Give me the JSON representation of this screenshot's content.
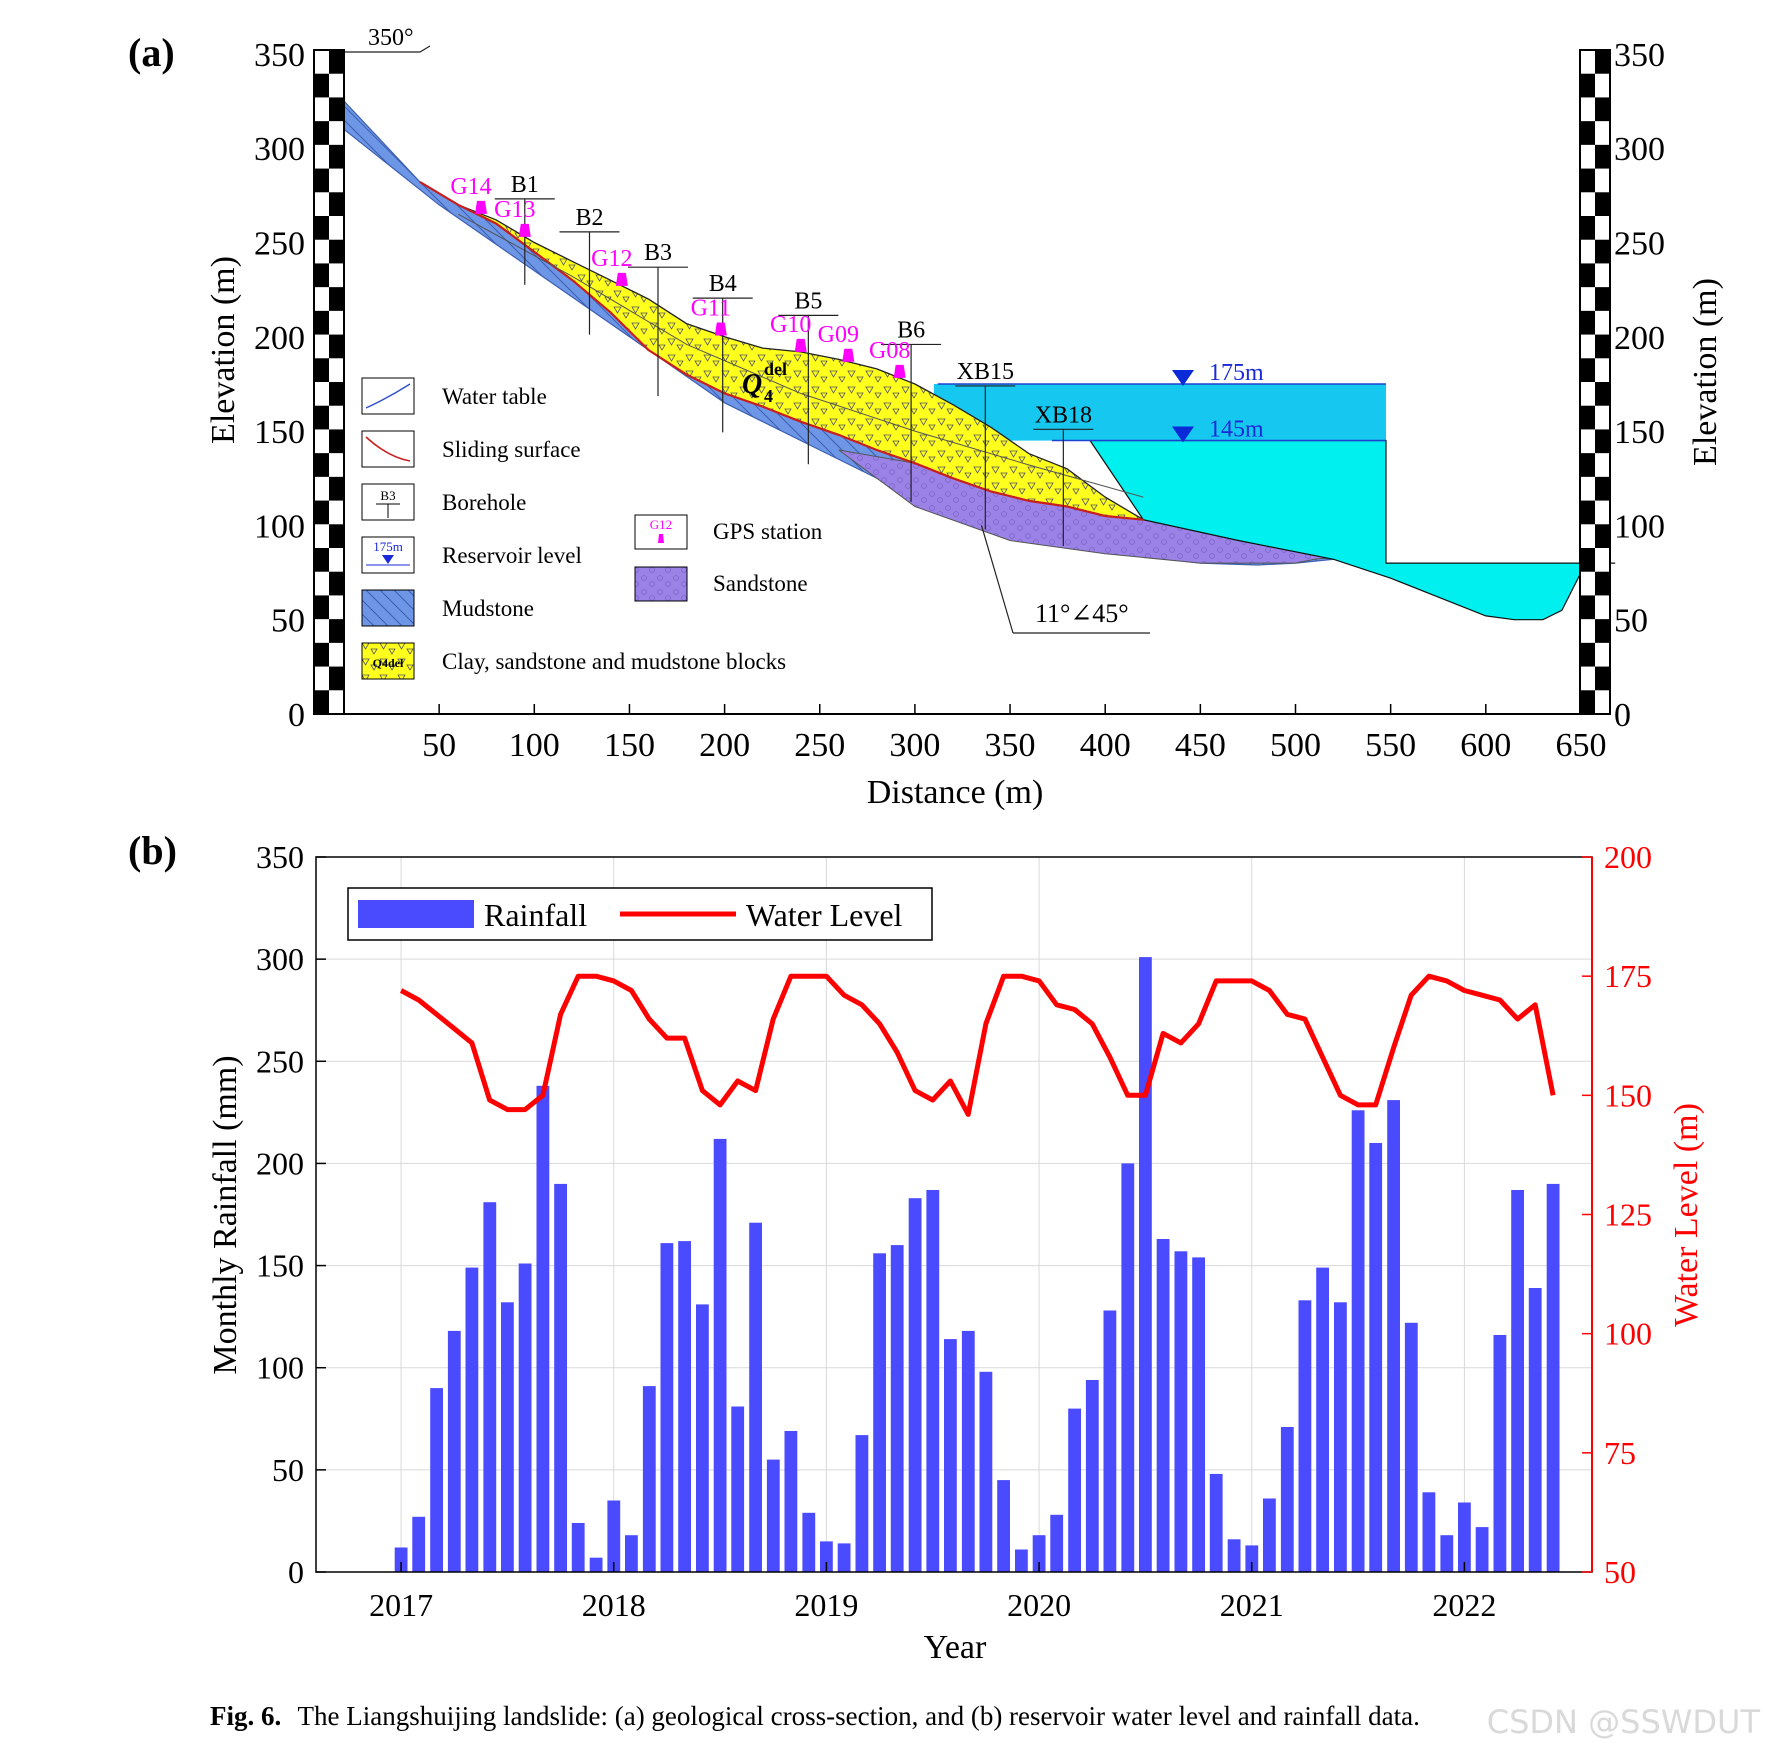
{
  "watermark": "CSDN @SSWDUT",
  "caption": {
    "label": "Fig. 6.",
    "text": "The Liangshuijing landslide: (a) geological cross-section, and (b) reservoir water level and rainfall data."
  },
  "panel_a": {
    "letter": "(a)",
    "xlabel": "Distance (m)",
    "ylabel_left": "Elevation (m)",
    "ylabel_right": "Elevation (m)",
    "xticks": [
      50,
      100,
      150,
      200,
      250,
      300,
      350,
      400,
      450,
      500,
      550,
      600,
      650
    ],
    "yticks": [
      0,
      50,
      100,
      150,
      200,
      250,
      300,
      350
    ],
    "orientation": "350°",
    "dip": "11°∠45°",
    "deposit_label": "Q",
    "deposit_sup": "del",
    "deposit_sub": "4",
    "reservoir_levels": [
      {
        "label": "175m",
        "elev": 175
      },
      {
        "label": "145m",
        "elev": 145
      }
    ],
    "boreholes": [
      {
        "id": "B1",
        "x": 95
      },
      {
        "id": "B2",
        "x": 129
      },
      {
        "id": "B3",
        "x": 165
      },
      {
        "id": "B4",
        "x": 199
      },
      {
        "id": "B5",
        "x": 244
      },
      {
        "id": "B6",
        "x": 298
      },
      {
        "id": "XB15",
        "x": 337
      },
      {
        "id": "XB18",
        "x": 378
      }
    ],
    "gps": [
      {
        "id": "G14",
        "x": 72
      },
      {
        "id": "G13",
        "x": 95
      },
      {
        "id": "G12",
        "x": 146
      },
      {
        "id": "G11",
        "x": 198
      },
      {
        "id": "G10",
        "x": 240
      },
      {
        "id": "G09",
        "x": 265
      },
      {
        "id": "G08",
        "x": 292
      }
    ],
    "legend": [
      {
        "key": "water_table",
        "label": "Water table"
      },
      {
        "key": "sliding",
        "label": "Sliding surface"
      },
      {
        "key": "borehole",
        "label": "Borehole",
        "sym": "B3"
      },
      {
        "key": "reservoir",
        "label": "Reservoir level",
        "sym": "175m"
      },
      {
        "key": "mudstone",
        "label": "Mudstone"
      },
      {
        "key": "clay",
        "label": "Clay, sandstone and mudstone blocks",
        "sym": "Q4del"
      },
      {
        "key": "gps",
        "label": "GPS station",
        "sym": "G12"
      },
      {
        "key": "sandstone",
        "label": "Sandstone"
      }
    ],
    "colors": {
      "mudstone": "#6e96e6",
      "deposit": "#ffff1e",
      "sandstone": "#9b82e6",
      "water_upper": "#16c8f0",
      "water_lower": "#00f0f0",
      "sliding": "#c81e1e",
      "gps": "#ff00ff"
    }
  },
  "chart_data": {
    "type": "bar",
    "panel": "(b)",
    "title": "",
    "xlabel": "Year",
    "ylabel": "Monthly Rainfall (mm)",
    "ylabel_right": "Water Level (m)",
    "ylim": [
      0,
      350
    ],
    "ylim_right": [
      50,
      200
    ],
    "yticks": [
      0,
      50,
      100,
      150,
      200,
      250,
      300,
      350
    ],
    "yticks_right": [
      50,
      75,
      100,
      125,
      150,
      175,
      200
    ],
    "xlim": [
      2016.6,
      2022.6
    ],
    "xticks": [
      2017,
      2018,
      2019,
      2020,
      2021,
      2022
    ],
    "grid": true,
    "legend_position": "top-left",
    "colors": {
      "rainfall": "#4a4aff",
      "water_level": "#ff0000"
    },
    "series": [
      {
        "name": "Rainfall",
        "type": "bar",
        "x": [
          2017.0,
          2017.083,
          2017.167,
          2017.25,
          2017.333,
          2017.417,
          2017.5,
          2017.583,
          2017.667,
          2017.75,
          2017.833,
          2017.917,
          2018.0,
          2018.083,
          2018.167,
          2018.25,
          2018.333,
          2018.417,
          2018.5,
          2018.583,
          2018.667,
          2018.75,
          2018.833,
          2018.917,
          2019.0,
          2019.083,
          2019.167,
          2019.25,
          2019.333,
          2019.417,
          2019.5,
          2019.583,
          2019.667,
          2019.75,
          2019.833,
          2019.917,
          2020.0,
          2020.083,
          2020.167,
          2020.25,
          2020.333,
          2020.417,
          2020.5,
          2020.583,
          2020.667,
          2020.75,
          2020.833,
          2020.917,
          2021.0,
          2021.083,
          2021.167,
          2021.25,
          2021.333,
          2021.417,
          2021.5,
          2021.583,
          2021.667,
          2021.75,
          2021.833,
          2021.917,
          2022.0,
          2022.083,
          2022.167,
          2022.25,
          2022.333,
          2022.417
        ],
        "values": [
          12,
          27,
          90,
          118,
          149,
          181,
          132,
          151,
          238,
          190,
          24,
          7,
          35,
          18,
          91,
          161,
          162,
          131,
          212,
          81,
          171,
          55,
          69,
          29,
          15,
          14,
          67,
          156,
          160,
          183,
          187,
          114,
          118,
          98,
          45,
          11,
          18,
          28,
          80,
          94,
          128,
          200,
          301,
          163,
          157,
          154,
          48,
          16,
          13,
          36,
          71,
          133,
          149,
          132,
          226,
          210,
          231,
          122,
          39,
          18,
          34,
          22,
          116,
          187,
          139,
          190
        ]
      },
      {
        "name": "Water Level",
        "type": "line",
        "axis": "right",
        "x": [
          2017.0,
          2017.083,
          2017.167,
          2017.25,
          2017.333,
          2017.417,
          2017.5,
          2017.583,
          2017.667,
          2017.75,
          2017.833,
          2017.917,
          2018.0,
          2018.083,
          2018.167,
          2018.25,
          2018.333,
          2018.417,
          2018.5,
          2018.583,
          2018.667,
          2018.75,
          2018.833,
          2018.917,
          2019.0,
          2019.083,
          2019.167,
          2019.25,
          2019.333,
          2019.417,
          2019.5,
          2019.583,
          2019.667,
          2019.75,
          2019.833,
          2019.917,
          2020.0,
          2020.083,
          2020.167,
          2020.25,
          2020.333,
          2020.417,
          2020.5,
          2020.583,
          2020.667,
          2020.75,
          2020.833,
          2020.917,
          2021.0,
          2021.083,
          2021.167,
          2021.25,
          2021.333,
          2021.417,
          2021.5,
          2021.583,
          2021.667,
          2021.75,
          2021.833,
          2021.917,
          2022.0,
          2022.083,
          2022.167,
          2022.25,
          2022.333,
          2022.417
        ],
        "values": [
          172,
          170,
          167,
          164,
          161,
          149,
          147,
          147,
          150,
          167,
          175,
          175,
          174,
          172,
          166,
          162,
          162,
          151,
          148,
          153,
          151,
          166,
          175,
          175,
          175,
          171,
          169,
          165,
          159,
          151,
          149,
          153,
          146,
          165,
          175,
          175,
          174,
          169,
          168,
          165,
          158,
          150,
          150,
          163,
          161,
          165,
          174,
          174,
          174,
          172,
          167,
          166,
          158,
          150,
          148,
          148,
          160,
          171,
          175,
          174,
          172,
          171,
          170,
          166,
          169,
          150
        ]
      }
    ]
  }
}
